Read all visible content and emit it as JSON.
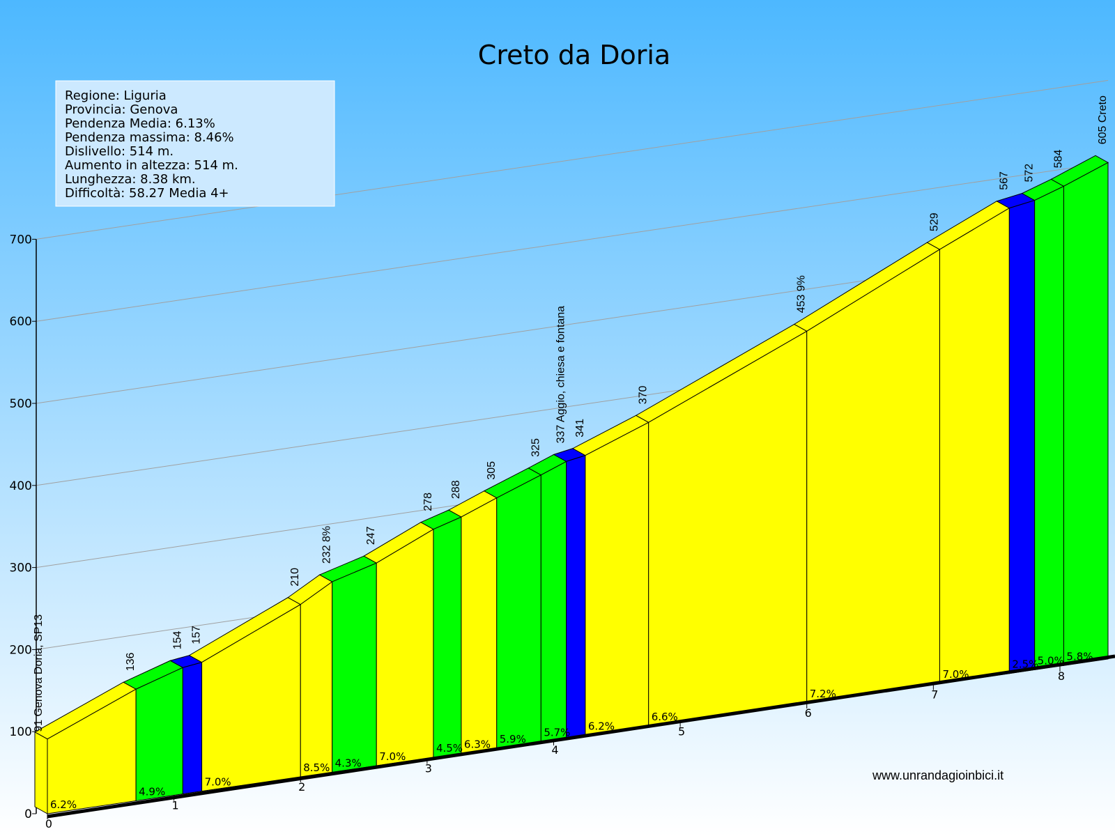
{
  "title": "Creto da Doria",
  "info": {
    "lines": [
      "Regione: Liguria",
      "Provincia: Genova",
      "Pendenza Media: 6.13%",
      "Pendenza massima: 8.46%",
      "Dislivello:   514 m.",
      "Aumento in altezza:   514 m.",
      "Lunghezza:  8.38 km.",
      "Difficoltà: 58.27 Media 4+"
    ]
  },
  "website": "www.unrandagioinbici.it",
  "colors": {
    "sky_top": "#4db8ff",
    "sky_bottom": "#ffffff",
    "moderate": "#ffff00",
    "easy": "#00ff00",
    "flat": "#0000ff",
    "outline": "#000000"
  },
  "chart_data": {
    "type": "area",
    "title": "Creto da Doria",
    "xlabel": "",
    "ylabel": "",
    "ylim": [
      0,
      700
    ],
    "yticks": [
      0,
      100,
      200,
      300,
      400,
      500,
      600,
      700
    ],
    "xlim": [
      0,
      8.38
    ],
    "xticks": [
      "0",
      "1",
      "2",
      "3",
      "4",
      "5",
      "6",
      "7",
      "8"
    ],
    "grid": true,
    "points": [
      {
        "km": 0.0,
        "elev": 91,
        "label": "91 Genova Doria, SP13"
      },
      {
        "km": 0.7,
        "elev": 136,
        "label": "136"
      },
      {
        "km": 1.07,
        "elev": 154,
        "label": "154"
      },
      {
        "km": 1.22,
        "elev": 157,
        "label": "157"
      },
      {
        "km": 2.0,
        "elev": 210,
        "label": "210"
      },
      {
        "km": 2.25,
        "elev": 232,
        "label": "232 8%"
      },
      {
        "km": 2.6,
        "elev": 247,
        "label": "247"
      },
      {
        "km": 3.05,
        "elev": 278,
        "label": "278"
      },
      {
        "km": 3.27,
        "elev": 288,
        "label": "288"
      },
      {
        "km": 3.55,
        "elev": 305,
        "label": "305"
      },
      {
        "km": 3.9,
        "elev": 325,
        "label": "325"
      },
      {
        "km": 4.1,
        "elev": 337,
        "label": "337 Aggio, chiesa e fontana"
      },
      {
        "km": 4.25,
        "elev": 341,
        "label": "341"
      },
      {
        "km": 4.75,
        "elev": 370,
        "label": "370"
      },
      {
        "km": 6.0,
        "elev": 453,
        "label": "453 9%"
      },
      {
        "km": 7.05,
        "elev": 529,
        "label": "529"
      },
      {
        "km": 7.6,
        "elev": 567,
        "label": "567"
      },
      {
        "km": 7.8,
        "elev": 572,
        "label": "572"
      },
      {
        "km": 8.03,
        "elev": 584,
        "label": "584"
      },
      {
        "km": 8.38,
        "elev": 605,
        "label": "605 Creto"
      }
    ],
    "segments": [
      {
        "grade": "6.2%",
        "class": "moderate"
      },
      {
        "grade": "4.9%",
        "class": "easy"
      },
      {
        "grade": "",
        "class": "flat"
      },
      {
        "grade": "7.0%",
        "class": "moderate"
      },
      {
        "grade": "8.5%",
        "class": "moderate"
      },
      {
        "grade": "4.3%",
        "class": "easy"
      },
      {
        "grade": "7.0%",
        "class": "moderate"
      },
      {
        "grade": "4.5%",
        "class": "easy"
      },
      {
        "grade": "6.3%",
        "class": "moderate"
      },
      {
        "grade": "5.9%",
        "class": "easy"
      },
      {
        "grade": "5.7%",
        "class": "easy"
      },
      {
        "grade": "",
        "class": "flat"
      },
      {
        "grade": "6.2%",
        "class": "moderate"
      },
      {
        "grade": "6.6%",
        "class": "moderate"
      },
      {
        "grade": "7.2%",
        "class": "moderate"
      },
      {
        "grade": "7.0%",
        "class": "moderate"
      },
      {
        "grade": "2.5%",
        "class": "flat"
      },
      {
        "grade": "5.0%",
        "class": "easy"
      },
      {
        "grade": "5.8%",
        "class": "easy"
      }
    ]
  }
}
